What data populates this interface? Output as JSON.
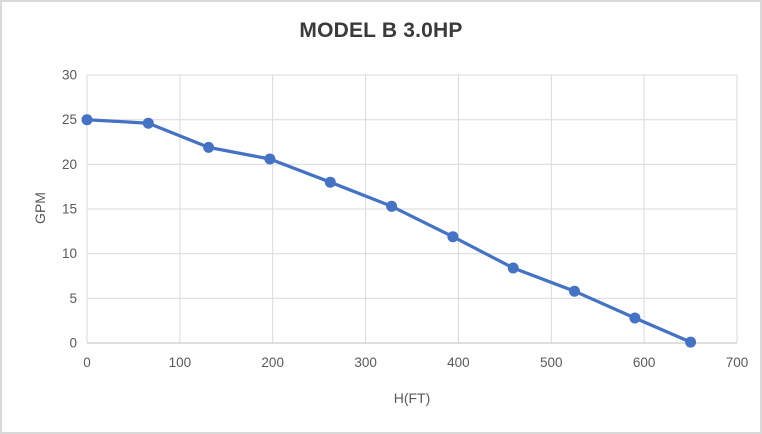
{
  "frame": {
    "background": "#ffffff",
    "border_color": "#d9d9d9"
  },
  "chart_data": {
    "type": "line",
    "title": "MODEL B 3.0HP",
    "xlabel": "H(FT)",
    "ylabel": "GPM",
    "x": [
      0,
      66,
      131,
      197,
      262,
      328,
      394,
      459,
      525,
      590,
      650
    ],
    "series": [
      {
        "name": "MODEL B 3.0HP",
        "values": [
          25.0,
          24.6,
          21.9,
          20.6,
          18.0,
          15.3,
          11.9,
          8.4,
          5.8,
          2.8,
          0.1
        ]
      }
    ],
    "xlim": [
      0,
      700
    ],
    "ylim": [
      0,
      30
    ],
    "x_ticks": [
      0,
      100,
      200,
      300,
      400,
      500,
      600,
      700
    ],
    "y_ticks": [
      0,
      5,
      10,
      15,
      20,
      25,
      30
    ],
    "grid": true,
    "legend_position": "none",
    "marker": "circle"
  },
  "styles": {
    "series_color": "#4472c4",
    "marker_color": "#4472c4",
    "grid_color": "#d9d9d9",
    "axis_line_color": "#bfbfbf",
    "tick_label_color": "#595959",
    "axis_title_color": "#595959",
    "title_color": "#3a3a3a"
  }
}
